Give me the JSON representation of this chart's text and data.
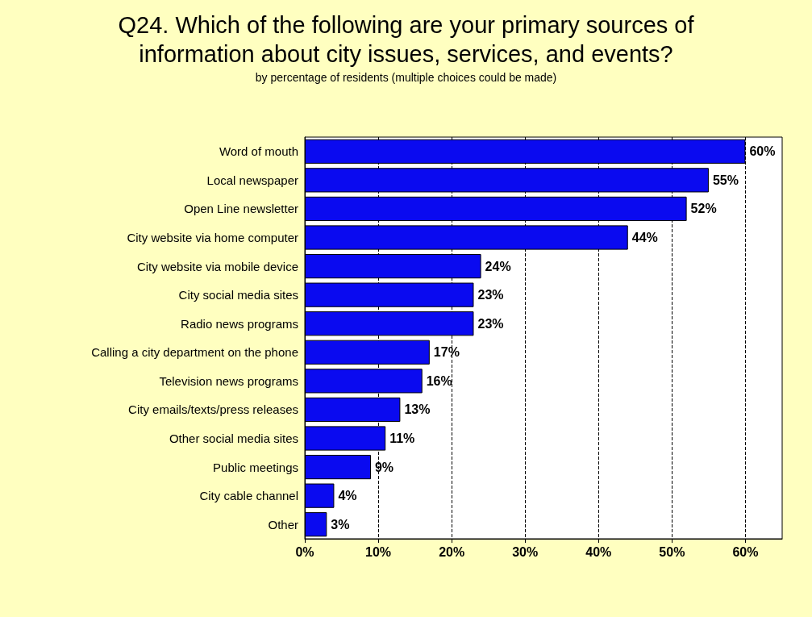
{
  "chart_data": {
    "type": "bar",
    "orientation": "horizontal",
    "title": "Q24. Which of the following are your primary sources of\ninformation about city issues, services, and events?",
    "subtitle": "by percentage of residents (multiple choices could be made)",
    "categories": [
      "Word of mouth",
      "Local newspaper",
      "Open Line newsletter",
      "City website via home computer",
      "City website via mobile device",
      "City social media sites",
      "Radio news programs",
      "Calling a city department on the phone",
      "Television news programs",
      "City emails/texts/press releases",
      "Other social media sites",
      "Public meetings",
      "City cable channel",
      "Other"
    ],
    "values": [
      60,
      55,
      52,
      44,
      24,
      23,
      23,
      17,
      16,
      13,
      11,
      9,
      4,
      3
    ],
    "value_labels": [
      "60%",
      "55%",
      "52%",
      "44%",
      "24%",
      "23%",
      "23%",
      "17%",
      "16%",
      "13%",
      "11%",
      "9%",
      "4%",
      "3%"
    ],
    "color": "#0a0af0",
    "xlim": [
      0,
      65
    ],
    "xticks": [
      {
        "value": 0,
        "label": "0%"
      },
      {
        "value": 10,
        "label": "10%"
      },
      {
        "value": 20,
        "label": "20%"
      },
      {
        "value": 30,
        "label": "30%"
      },
      {
        "value": 40,
        "label": "40%"
      },
      {
        "value": 50,
        "label": "50%"
      },
      {
        "value": 60,
        "label": "60%"
      }
    ],
    "grid": "x",
    "line_style": "dashed"
  }
}
